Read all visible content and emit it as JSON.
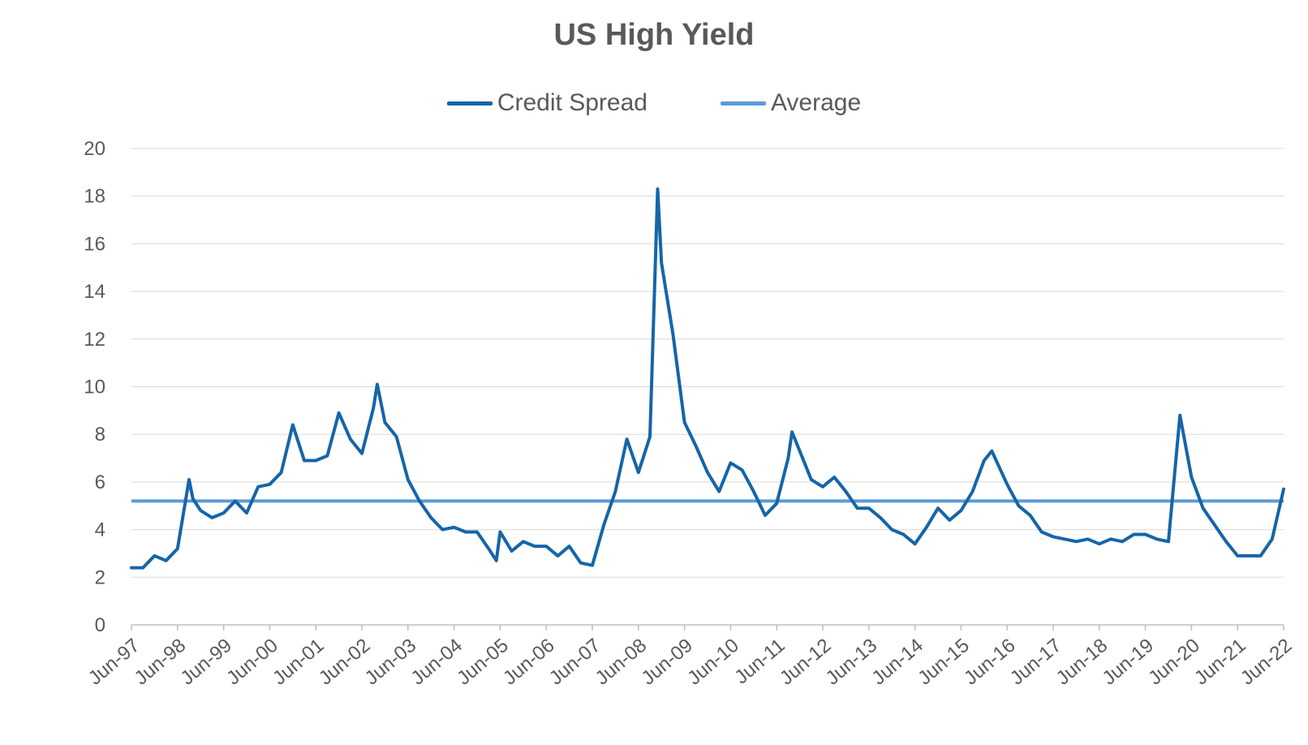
{
  "chart_data": {
    "type": "line",
    "title": "US High Yield",
    "xlabel": "",
    "ylabel": "",
    "ylim": [
      0,
      20
    ],
    "yticks": [
      0,
      2,
      4,
      6,
      8,
      10,
      12,
      14,
      16,
      18,
      20
    ],
    "xticks": [
      "Jun-97",
      "Jun-98",
      "Jun-99",
      "Jun-00",
      "Jun-01",
      "Jun-02",
      "Jun-03",
      "Jun-04",
      "Jun-05",
      "Jun-06",
      "Jun-07",
      "Jun-08",
      "Jun-09",
      "Jun-10",
      "Jun-11",
      "Jun-12",
      "Jun-13",
      "Jun-14",
      "Jun-15",
      "Jun-16",
      "Jun-17",
      "Jun-18",
      "Jun-19",
      "Jun-20",
      "Jun-21",
      "Jun-22"
    ],
    "grid": true,
    "legend_position": "top-center",
    "series": [
      {
        "name": "Credit Spread",
        "color": "#1565A8",
        "x": [
          "Jun-97",
          "Sep-97",
          "Dec-97",
          "Mar-98",
          "Jun-98",
          "Sep-98",
          "Oct-98",
          "Dec-98",
          "Mar-99",
          "Jun-99",
          "Sep-99",
          "Dec-99",
          "Mar-00",
          "Jun-00",
          "Sep-00",
          "Dec-00",
          "Mar-01",
          "Jun-01",
          "Sep-01",
          "Dec-01",
          "Mar-02",
          "Jun-02",
          "Sep-02",
          "Oct-02",
          "Dec-02",
          "Mar-03",
          "Jun-03",
          "Sep-03",
          "Dec-03",
          "Mar-04",
          "Jun-04",
          "Sep-04",
          "Dec-04",
          "Mar-05",
          "May-05",
          "Jun-05",
          "Sep-05",
          "Dec-05",
          "Mar-06",
          "Jun-06",
          "Sep-06",
          "Dec-06",
          "Mar-07",
          "Jun-07",
          "Sep-07",
          "Dec-07",
          "Mar-08",
          "Jun-08",
          "Sep-08",
          "Nov-08",
          "Dec-08",
          "Mar-09",
          "Jun-09",
          "Sep-09",
          "Dec-09",
          "Mar-10",
          "Jun-10",
          "Sep-10",
          "Dec-10",
          "Mar-11",
          "Jun-11",
          "Sep-11",
          "Oct-11",
          "Dec-11",
          "Mar-12",
          "Jun-12",
          "Sep-12",
          "Dec-12",
          "Mar-13",
          "Jun-13",
          "Sep-13",
          "Dec-13",
          "Mar-14",
          "Jun-14",
          "Sep-14",
          "Dec-14",
          "Mar-15",
          "Jun-15",
          "Sep-15",
          "Dec-15",
          "Feb-16",
          "Jun-16",
          "Sep-16",
          "Dec-16",
          "Mar-17",
          "Jun-17",
          "Sep-17",
          "Dec-17",
          "Mar-18",
          "Jun-18",
          "Sep-18",
          "Dec-18",
          "Mar-19",
          "Jun-19",
          "Sep-19",
          "Dec-19",
          "Mar-20",
          "Jun-20",
          "Sep-20",
          "Dec-20",
          "Mar-21",
          "Jun-21",
          "Sep-21",
          "Dec-21",
          "Mar-22",
          "Jun-22"
        ],
        "values": [
          2.4,
          2.4,
          2.9,
          2.7,
          3.2,
          6.1,
          5.3,
          4.8,
          4.5,
          4.7,
          5.2,
          4.7,
          5.8,
          5.9,
          6.4,
          8.4,
          6.9,
          6.9,
          7.1,
          8.9,
          7.8,
          7.2,
          9.1,
          10.1,
          8.5,
          7.9,
          6.1,
          5.2,
          4.5,
          4.0,
          4.1,
          3.9,
          3.9,
          3.2,
          2.7,
          3.9,
          3.1,
          3.5,
          3.3,
          3.3,
          2.9,
          3.3,
          2.6,
          2.5,
          4.2,
          5.6,
          7.8,
          6.4,
          7.9,
          18.3,
          15.2,
          12.2,
          8.5,
          7.5,
          6.4,
          5.6,
          6.8,
          6.5,
          5.6,
          4.6,
          5.1,
          7.0,
          8.1,
          7.3,
          6.1,
          5.8,
          6.2,
          5.6,
          4.9,
          4.9,
          4.5,
          4.0,
          3.8,
          3.4,
          4.1,
          4.9,
          4.4,
          4.8,
          5.6,
          6.9,
          7.3,
          5.9,
          5.0,
          4.6,
          3.9,
          3.7,
          3.6,
          3.5,
          3.6,
          3.4,
          3.6,
          3.5,
          3.8,
          3.8,
          3.6,
          3.5,
          8.8,
          6.2,
          4.9,
          4.2,
          3.5,
          2.9,
          2.9,
          2.9,
          3.6,
          5.7
        ]
      },
      {
        "name": "Average",
        "color": "#5B9BD5",
        "constant": 5.2
      }
    ]
  }
}
